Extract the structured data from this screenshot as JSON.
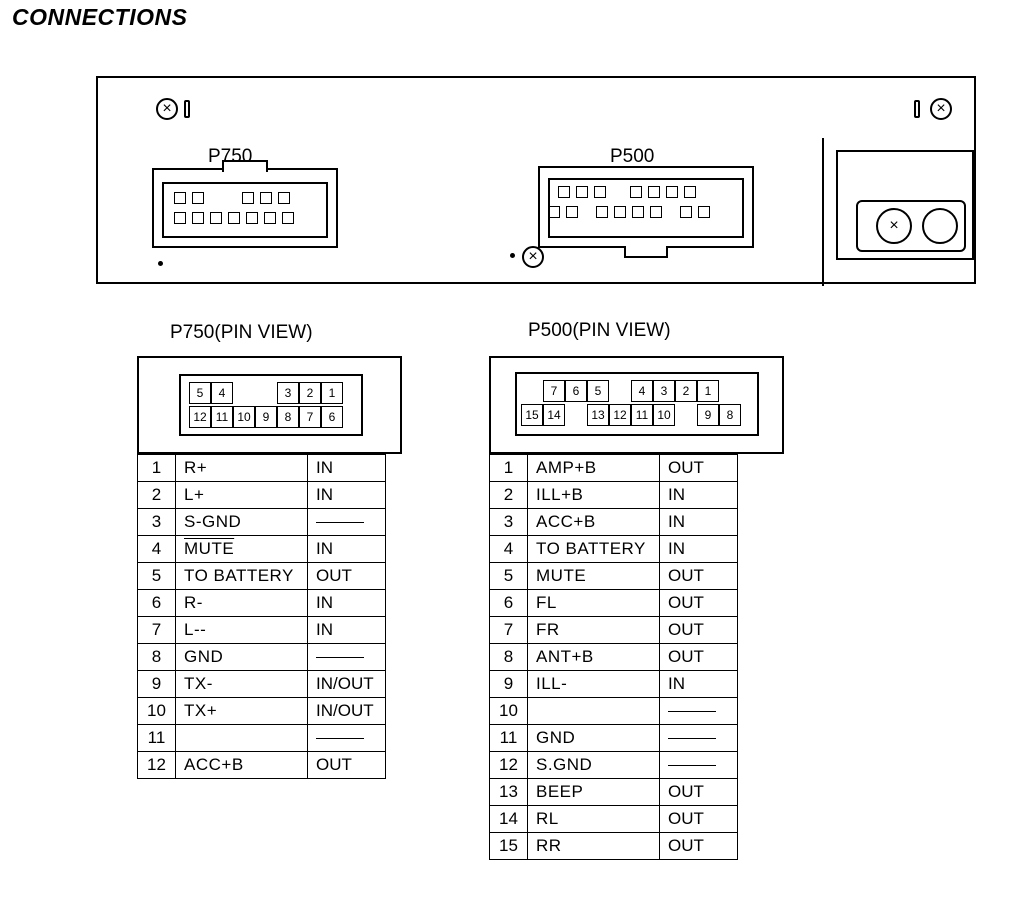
{
  "title": "CONNECTIONS",
  "panel": {
    "connectors": {
      "p750_label": "P750",
      "p500_label": "P500"
    }
  },
  "p750": {
    "title": "P750(PIN VIEW)",
    "top_row": [
      "5",
      "4",
      "",
      "",
      "3",
      "2",
      "1"
    ],
    "bottom_row": [
      "12",
      "11",
      "10",
      "9",
      "8",
      "7",
      "6"
    ],
    "pins": [
      {
        "n": "1",
        "sig": "R+",
        "dir": "IN"
      },
      {
        "n": "2",
        "sig": "L+",
        "dir": "IN"
      },
      {
        "n": "3",
        "sig": "S-GND",
        "dir": "—"
      },
      {
        "n": "4",
        "sig": "MUTE",
        "dir": "IN",
        "overline": true
      },
      {
        "n": "5",
        "sig": "TO BATTERY",
        "dir": "OUT"
      },
      {
        "n": "6",
        "sig": "R-",
        "dir": "IN"
      },
      {
        "n": "7",
        "sig": "L--",
        "dir": "IN"
      },
      {
        "n": "8",
        "sig": "GND",
        "dir": "—"
      },
      {
        "n": "9",
        "sig": "TX-",
        "dir": "IN/OUT"
      },
      {
        "n": "10",
        "sig": "TX+",
        "dir": "IN/OUT"
      },
      {
        "n": "11",
        "sig": "",
        "dir": "—"
      },
      {
        "n": "12",
        "sig": "ACC+B",
        "dir": "OUT"
      }
    ]
  },
  "p500": {
    "title": "P500(PIN VIEW)",
    "top_row": [
      "7",
      "6",
      "5",
      "",
      "4",
      "3",
      "2",
      "1"
    ],
    "bottom_row": [
      "15",
      "14",
      "",
      "13",
      "12",
      "11",
      "10",
      "",
      "9",
      "8"
    ],
    "pins": [
      {
        "n": "1",
        "sig": "AMP+B",
        "dir": "OUT"
      },
      {
        "n": "2",
        "sig": "ILL+B",
        "dir": "IN"
      },
      {
        "n": "3",
        "sig": "ACC+B",
        "dir": "IN"
      },
      {
        "n": "4",
        "sig": "TO BATTERY",
        "dir": "IN"
      },
      {
        "n": "5",
        "sig": "MUTE",
        "dir": "OUT"
      },
      {
        "n": "6",
        "sig": "FL",
        "dir": "OUT"
      },
      {
        "n": "7",
        "sig": "FR",
        "dir": "OUT"
      },
      {
        "n": "8",
        "sig": "ANT+B",
        "dir": "OUT"
      },
      {
        "n": "9",
        "sig": "ILL-",
        "dir": "IN"
      },
      {
        "n": "10",
        "sig": "",
        "dir": "—"
      },
      {
        "n": "11",
        "sig": "GND",
        "dir": "—"
      },
      {
        "n": "12",
        "sig": "S.GND",
        "dir": "—"
      },
      {
        "n": "13",
        "sig": "BEEP",
        "dir": "OUT"
      },
      {
        "n": "14",
        "sig": "RL",
        "dir": "OUT"
      },
      {
        "n": "15",
        "sig": "RR",
        "dir": "OUT"
      }
    ]
  },
  "style": {
    "stroke": "#000000",
    "background": "#ffffff",
    "font": "Arial",
    "title_fontsize": 23,
    "label_fontsize": 19,
    "table_fontsize": 17,
    "pincell_fontsize": 12,
    "line_width": 2,
    "table_cell_height": 27
  }
}
